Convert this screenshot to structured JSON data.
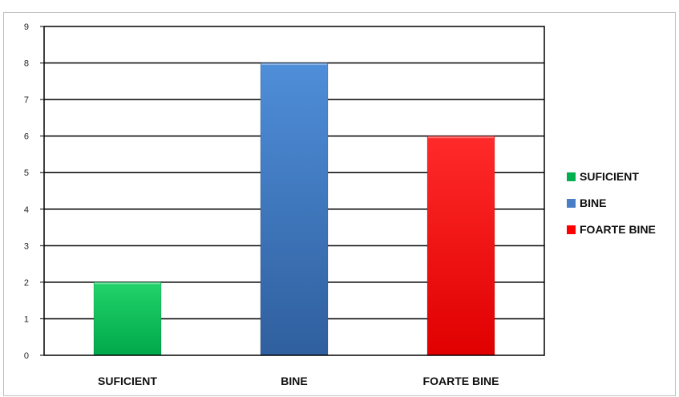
{
  "chart_data": {
    "type": "bar",
    "title": "",
    "xlabel": "",
    "ylabel": "",
    "categories": [
      "SUFICIENT",
      "BINE",
      "FOARTE BINE"
    ],
    "values": [
      2,
      8,
      6
    ],
    "ylim": [
      0,
      9
    ],
    "yticks": [
      "0",
      "1",
      "2",
      "3",
      "4",
      "5",
      "6",
      "7",
      "8",
      "9"
    ],
    "grid": true,
    "legend_position": "right",
    "legend": [
      {
        "label": "SUFICIENT",
        "color": "#00b050"
      },
      {
        "label": "BINE",
        "color": "#4a7ec4"
      },
      {
        "label": "FOARTE BINE",
        "color": "#ff0000"
      }
    ],
    "colors": {
      "suficient_top": "#22d36a",
      "suficient_bottom": "#00a84a",
      "bine_top": "#4f8ed9",
      "bine_bottom": "#2f5f9e",
      "foarte_bine_top": "#ff2a2a",
      "foarte_bine_bottom": "#e00000"
    }
  }
}
